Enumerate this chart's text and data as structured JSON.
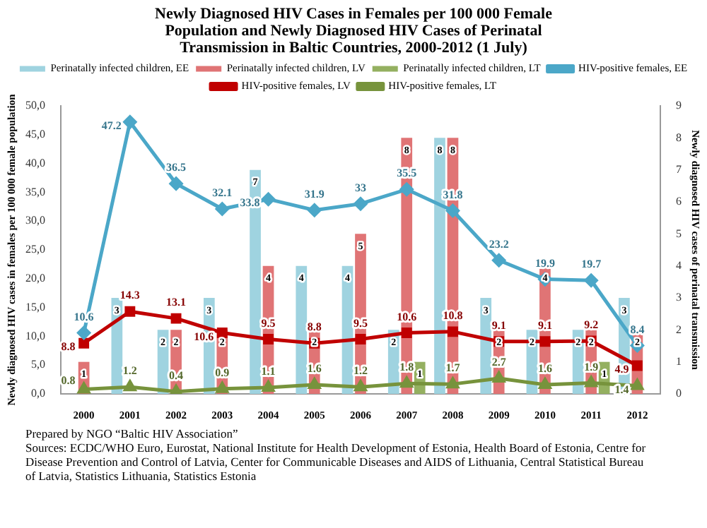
{
  "chart_data": {
    "type": "bar",
    "title": "Newly Diagnosed HIV Cases in Females per 100 000 Female Population and Newly Diagnosed HIV Cases of Perinatal Transmission in Baltic Countries, 2000-2012 (1 July)",
    "ylabel": "Newly diagnosed HIV cases in females per 100 000 female population",
    "y2label": "Newly diagnosed HIV cases of perinatal transmission",
    "categories": [
      "2000",
      "2001",
      "2002",
      "2003",
      "2004",
      "2005",
      "2006",
      "2007",
      "2008",
      "2009",
      "2010",
      "2011",
      "2012"
    ],
    "series": [
      {
        "name": "Perinatally infected children, EE",
        "type": "bar",
        "axis": "y2",
        "color": "#9fd3e0",
        "values": [
          null,
          3,
          2,
          3,
          7,
          4,
          4,
          2,
          8,
          3,
          2,
          2,
          3
        ]
      },
      {
        "name": "Perinatally infected children, LV",
        "type": "bar",
        "axis": "y2",
        "color": "#e07475",
        "values": [
          1,
          null,
          2,
          2,
          4,
          2,
          5,
          8,
          8,
          2,
          4,
          2,
          2
        ]
      },
      {
        "name": "Perinatally infected children, LT",
        "type": "bar",
        "axis": "y2",
        "color": "#94b060",
        "values": [
          null,
          null,
          null,
          null,
          null,
          null,
          null,
          1,
          null,
          null,
          null,
          1,
          null
        ]
      },
      {
        "name": "HIV-positive females, EE",
        "type": "line",
        "marker": "diamond",
        "color": "#4ba7c8",
        "values": [
          10.6,
          47.2,
          36.5,
          32.1,
          33.8,
          31.9,
          33,
          35.5,
          31.8,
          23.2,
          19.9,
          19.7,
          8.4
        ]
      },
      {
        "name": "HIV-positive females, LV",
        "type": "line",
        "marker": "square",
        "color": "#c00000",
        "values": [
          8.8,
          14.3,
          13.1,
          10.6,
          9.5,
          8.8,
          9.5,
          10.6,
          10.8,
          9.1,
          9.1,
          9.2,
          4.9
        ]
      },
      {
        "name": "HIV-positive females, LT",
        "type": "line",
        "marker": "triangle",
        "color": "#77933c",
        "values": [
          0.8,
          1.2,
          0.4,
          0.9,
          1.1,
          1.6,
          1.2,
          1.8,
          1.7,
          2.7,
          1.6,
          1.9,
          1.4
        ]
      }
    ],
    "ylim": [
      0,
      50
    ],
    "yticks": [
      {
        "value": 0,
        "label": "0,0"
      },
      {
        "value": 5,
        "label": "5,0"
      },
      {
        "value": 10,
        "label": "10,0"
      },
      {
        "value": 15,
        "label": "15,0"
      },
      {
        "value": 20,
        "label": "20,0"
      },
      {
        "value": 25,
        "label": "25,0"
      },
      {
        "value": 30,
        "label": "30,0"
      },
      {
        "value": 35,
        "label": "35,0"
      },
      {
        "value": 40,
        "label": "40,0"
      },
      {
        "value": 45,
        "label": "45,0"
      },
      {
        "value": 50,
        "label": "50,0"
      }
    ],
    "y2lim": [
      0,
      9
    ],
    "y2ticks": [
      0,
      1,
      2,
      3,
      4,
      5,
      6,
      7,
      8,
      9
    ],
    "legend": "top",
    "grid": false,
    "data_labels": true,
    "annotations": [
      "Prepared by NGO “Baltic  HIV Association”",
      "Sources: ECDC/WHO  Euro, Eurostat, National  Institute for Health  Development  of Estonia, Health  Board of Estonia, Centre for Disease Prevention and Control of Latvia, Center for Communicable  Diseases and AIDS of Lithuania, Central Statistical Bureau of Latvia, Statistics Lithuania,  Statistics Estonia"
    ]
  }
}
